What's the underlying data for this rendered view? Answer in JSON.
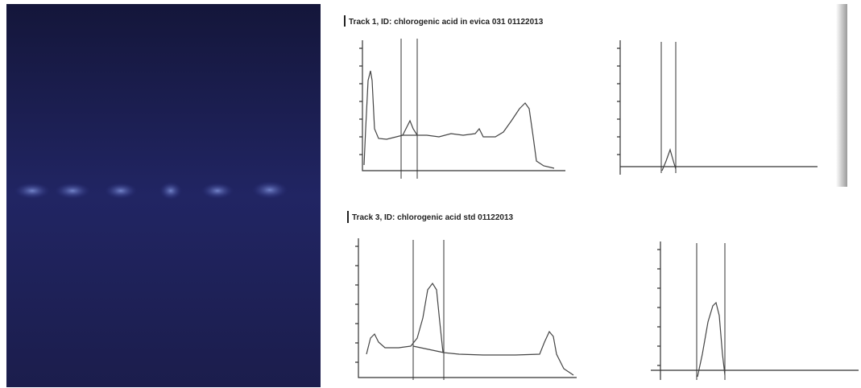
{
  "panels": [
    {
      "title": "Track 1, ID: chlorogenic acid in evica 031 01122013"
    },
    {
      "title": "Track 3, ID: chlorogenic acid std 01122013"
    }
  ]
}
